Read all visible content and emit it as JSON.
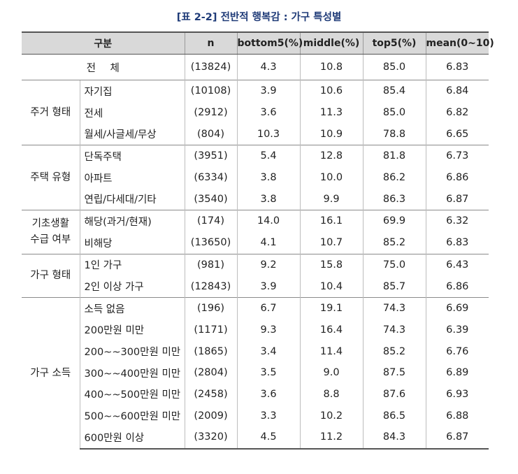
{
  "title": "[표 2-2] 전반적 행복감 : 가구 특성별",
  "table": {
    "headers": [
      "구분",
      "n",
      "bottom5(%)",
      "middle(%)",
      "top5(%)",
      "mean(0~10)"
    ],
    "total": {
      "label": "전 체",
      "n": "(13824)",
      "bottom5": "4.3",
      "middle": "10.8",
      "top5": "85.0",
      "mean": "6.83"
    },
    "groups": [
      {
        "name": "주거 형태",
        "rows": [
          {
            "label": "자기집",
            "n": "(10108)",
            "bottom5": "3.9",
            "middle": "10.6",
            "top5": "85.4",
            "mean": "6.84"
          },
          {
            "label": "전세",
            "n": "(2912)",
            "bottom5": "3.6",
            "middle": "11.3",
            "top5": "85.0",
            "mean": "6.82"
          },
          {
            "label": "월세/사글세/무상",
            "n": "(804)",
            "bottom5": "10.3",
            "middle": "10.9",
            "top5": "78.8",
            "mean": "6.65"
          }
        ]
      },
      {
        "name": "주택 유형",
        "rows": [
          {
            "label": "단독주택",
            "n": "(3951)",
            "bottom5": "5.4",
            "middle": "12.8",
            "top5": "81.8",
            "mean": "6.73"
          },
          {
            "label": "아파트",
            "n": "(6334)",
            "bottom5": "3.8",
            "middle": "10.0",
            "top5": "86.2",
            "mean": "6.86"
          },
          {
            "label": "연립/다세대/기타",
            "n": "(3540)",
            "bottom5": "3.8",
            "middle": "9.9",
            "top5": "86.3",
            "mean": "6.87"
          }
        ]
      },
      {
        "name": "기초생활\n수급 여부",
        "rows": [
          {
            "label": "해당(과거/현재)",
            "n": "(174)",
            "bottom5": "14.0",
            "middle": "16.1",
            "top5": "69.9",
            "mean": "6.32"
          },
          {
            "label": "비해당",
            "n": "(13650)",
            "bottom5": "4.1",
            "middle": "10.7",
            "top5": "85.2",
            "mean": "6.83"
          }
        ]
      },
      {
        "name": "가구 형태",
        "rows": [
          {
            "label": "1인 가구",
            "n": "(981)",
            "bottom5": "9.2",
            "middle": "15.8",
            "top5": "75.0",
            "mean": "6.43"
          },
          {
            "label": "2인 이상 가구",
            "n": "(12843)",
            "bottom5": "3.9",
            "middle": "10.4",
            "top5": "85.7",
            "mean": "6.86"
          }
        ]
      },
      {
        "name": "가구 소득",
        "rows": [
          {
            "label": "소득 없음",
            "n": "(196)",
            "bottom5": "6.7",
            "middle": "19.1",
            "top5": "74.3",
            "mean": "6.69"
          },
          {
            "label": "200만원 미만",
            "n": "(1171)",
            "bottom5": "9.3",
            "middle": "16.4",
            "top5": "74.3",
            "mean": "6.39"
          },
          {
            "label": "200~~300만원 미만",
            "n": "(1865)",
            "bottom5": "3.4",
            "middle": "11.4",
            "top5": "85.2",
            "mean": "6.76"
          },
          {
            "label": "300~~400만원 미만",
            "n": "(2804)",
            "bottom5": "3.5",
            "middle": "9.0",
            "top5": "87.5",
            "mean": "6.89"
          },
          {
            "label": "400~~500만원 미만",
            "n": "(2458)",
            "bottom5": "3.6",
            "middle": "8.8",
            "top5": "87.6",
            "mean": "6.93"
          },
          {
            "label": "500~~600만원 미만",
            "n": "(2009)",
            "bottom5": "3.3",
            "middle": "10.2",
            "top5": "86.5",
            "mean": "6.88"
          },
          {
            "label": "600만원 이상",
            "n": "(3320)",
            "bottom5": "4.5",
            "middle": "11.2",
            "top5": "84.3",
            "mean": "6.87"
          }
        ]
      }
    ]
  }
}
